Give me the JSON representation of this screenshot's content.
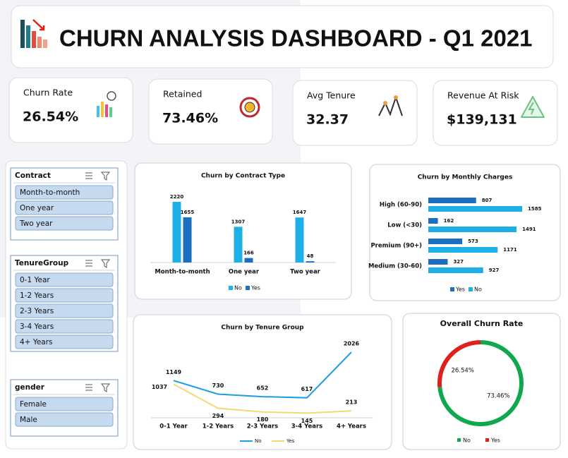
{
  "header": {
    "title": "CHURN ANALYSIS DASHBOARD - Q1 2021"
  },
  "kpis": [
    {
      "label": "Churn Rate",
      "value": "26.54%"
    },
    {
      "label": "Retained",
      "value": "73.46%"
    },
    {
      "label": "Avg Tenure",
      "value": "32.37"
    },
    {
      "label": "Revenue At Risk",
      "value": "$139,131"
    }
  ],
  "slicers": [
    {
      "title": "Contract",
      "items": [
        "Month-to-month",
        "One year",
        "Two year"
      ]
    },
    {
      "title": "TenureGroup",
      "items": [
        "0-1 Year",
        "1-2 Years",
        "2-3 Years",
        "3-4 Years",
        "4+ Years"
      ]
    },
    {
      "title": "gender",
      "items": [
        "Female",
        "Male"
      ]
    }
  ],
  "chart_data": [
    {
      "type": "bar",
      "title": "Churn by Contract Type",
      "categories": [
        "Month-to-month",
        "One year",
        "Two year"
      ],
      "series": [
        {
          "name": "No",
          "color": "#1cb0e6",
          "values": [
            2220,
            1307,
            1647
          ]
        },
        {
          "name": "Yes",
          "color": "#1c6fbf",
          "values": [
            1655,
            166,
            48
          ]
        }
      ]
    },
    {
      "type": "bar",
      "orientation": "horizontal",
      "title": "Churn by Monthly Charges",
      "categories": [
        "High (60-90)",
        "Low (<30)",
        "Premium (90+)",
        "Medium (30-60)"
      ],
      "series": [
        {
          "name": "Yes",
          "color": "#1c6fbf",
          "values": [
            807,
            162,
            573,
            327
          ]
        },
        {
          "name": "No",
          "color": "#1cb0e6",
          "values": [
            1585,
            1491,
            1171,
            927
          ]
        }
      ]
    },
    {
      "type": "line",
      "title": "Churn by Tenure Group",
      "categories": [
        "0-1 Year",
        "1-2 Years",
        "2-3 Years",
        "3-4 Years",
        "4+ Years"
      ],
      "series": [
        {
          "name": "No",
          "color": "#1a9fe0",
          "values": [
            1149,
            730,
            652,
            617,
            2026
          ]
        },
        {
          "name": "Yes",
          "color": "#f7d774",
          "values": [
            1037,
            294,
            180,
            145,
            213
          ]
        }
      ]
    },
    {
      "type": "donut",
      "title": "Overall Churn Rate",
      "categories": [
        "No",
        "Yes"
      ],
      "values": [
        73.46,
        26.54
      ],
      "value_labels": [
        "73.46%",
        "26.54%"
      ],
      "colors": [
        "#10a84e",
        "#e0201b"
      ]
    }
  ]
}
